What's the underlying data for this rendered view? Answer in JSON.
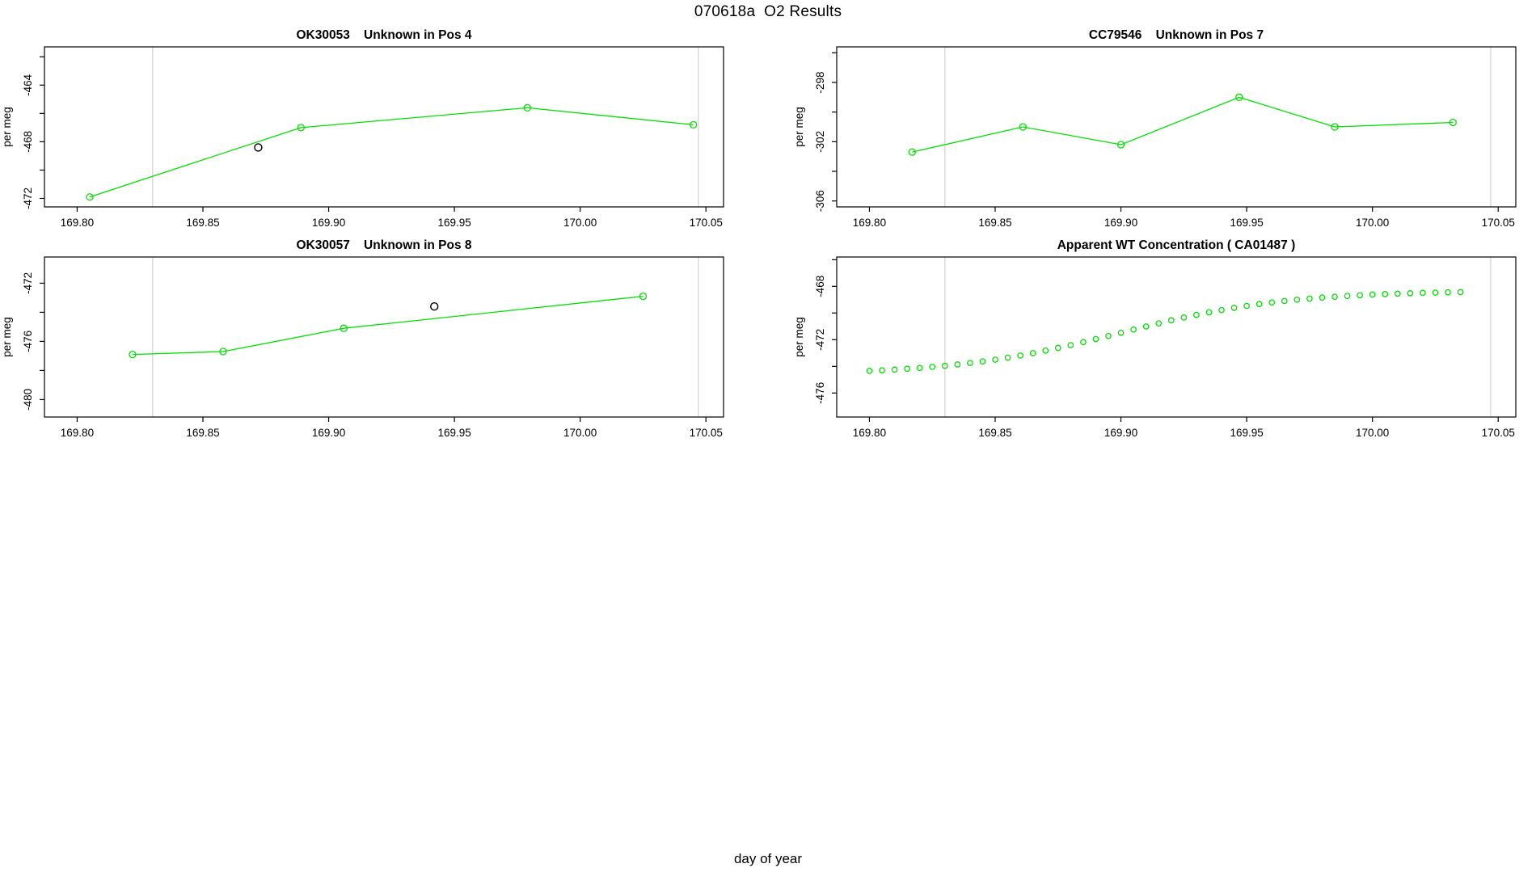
{
  "page_title": "070618a  O2 Results",
  "x_axis_label": "day of year",
  "colors": {
    "series_green": "#00e100",
    "outlier_black": "#000000",
    "ref_line_gray": "#d9d9d9",
    "axis_black": "#000000",
    "background": "#ffffff"
  },
  "chart_data": [
    {
      "type": "line",
      "title": "OK30053    Unknown in Pos 4",
      "ylabel": "per meg",
      "xlabel": "",
      "grid": false,
      "xlim": [
        169.787,
        170.057
      ],
      "ylim": [
        -472.6,
        -461.3
      ],
      "x_ticks": [
        169.8,
        169.85,
        169.9,
        169.95,
        170.0,
        170.05
      ],
      "x_tick_labels": [
        "169.80",
        "169.85",
        "169.90",
        "169.95",
        "170.00",
        "170.05"
      ],
      "y_ticks": [
        -472,
        -470,
        -468,
        -466,
        -464,
        -462
      ],
      "y_ticks_labeled": [
        -472,
        -468,
        -464
      ],
      "ref_lines_x": [
        169.83,
        170.047
      ],
      "series": [
        {
          "name": "sample-measurements",
          "style": "line+markers",
          "points": [
            [
              169.805,
              -471.9
            ],
            [
              169.889,
              -467.0
            ],
            [
              169.979,
              -465.6
            ],
            [
              170.045,
              -466.8
            ]
          ]
        }
      ],
      "outlier_points": [
        [
          169.872,
          -468.4
        ]
      ]
    },
    {
      "type": "line",
      "title": "CC79546    Unknown in Pos 7",
      "ylabel": "per meg",
      "xlabel": "",
      "grid": false,
      "xlim": [
        169.787,
        170.057
      ],
      "ylim": [
        -306.4,
        -295.6
      ],
      "x_ticks": [
        169.8,
        169.85,
        169.9,
        169.95,
        170.0,
        170.05
      ],
      "x_tick_labels": [
        "169.80",
        "169.85",
        "169.90",
        "169.95",
        "170.00",
        "170.05"
      ],
      "y_ticks": [
        -306,
        -304,
        -302,
        -300,
        -298,
        -296
      ],
      "y_ticks_labeled": [
        -306,
        -302,
        -298
      ],
      "ref_lines_x": [
        169.83,
        170.047
      ],
      "series": [
        {
          "name": "sample-measurements",
          "style": "line+markers",
          "points": [
            [
              169.817,
              -302.7
            ],
            [
              169.861,
              -301.0
            ],
            [
              169.9,
              -302.2
            ],
            [
              169.947,
              -299.0
            ],
            [
              169.985,
              -301.0
            ],
            [
              170.032,
              -300.7
            ]
          ]
        }
      ],
      "outlier_points": []
    },
    {
      "type": "line",
      "title": "OK30057    Unknown in Pos 8",
      "ylabel": "per meg",
      "xlabel": "",
      "grid": false,
      "xlim": [
        169.787,
        170.057
      ],
      "ylim": [
        -481.2,
        -470.2
      ],
      "x_ticks": [
        169.8,
        169.85,
        169.9,
        169.95,
        170.0,
        170.05
      ],
      "x_tick_labels": [
        "169.80",
        "169.85",
        "169.90",
        "169.95",
        "170.00",
        "170.05"
      ],
      "y_ticks": [
        -480,
        -478,
        -476,
        -474,
        -472
      ],
      "y_ticks_labeled": [
        -480,
        -476,
        -472
      ],
      "ref_lines_x": [
        169.83,
        170.047
      ],
      "series": [
        {
          "name": "sample-measurements",
          "style": "line+markers",
          "points": [
            [
              169.822,
              -476.9
            ],
            [
              169.858,
              -476.7
            ],
            [
              169.906,
              -475.1
            ],
            [
              170.025,
              -472.9
            ]
          ]
        }
      ],
      "outlier_points": [
        [
          169.942,
          -473.6
        ]
      ]
    },
    {
      "type": "scatter",
      "title": "Apparent WT Concentration ( CA01487 )",
      "ylabel": "per meg",
      "xlabel": "",
      "grid": false,
      "xlim": [
        169.787,
        170.057
      ],
      "ylim": [
        -477.8,
        -465.8
      ],
      "x_ticks": [
        169.8,
        169.85,
        169.9,
        169.95,
        170.0,
        170.05
      ],
      "x_tick_labels": [
        "169.80",
        "169.85",
        "169.90",
        "169.95",
        "170.00",
        "170.05"
      ],
      "y_ticks": [
        -476,
        -474,
        -472,
        -470,
        -468,
        -466
      ],
      "y_ticks_labeled": [
        -476,
        -472,
        -468
      ],
      "ref_lines_x": [
        169.83,
        170.047
      ],
      "series": [
        {
          "name": "apparent-wt-concentration",
          "style": "markers",
          "points": [
            [
              169.8,
              -474.34
            ],
            [
              169.805,
              -474.3
            ],
            [
              169.81,
              -474.24
            ],
            [
              169.815,
              -474.18
            ],
            [
              169.82,
              -474.12
            ],
            [
              169.825,
              -474.04
            ],
            [
              169.83,
              -473.96
            ],
            [
              169.835,
              -473.86
            ],
            [
              169.84,
              -473.75
            ],
            [
              169.845,
              -473.63
            ],
            [
              169.85,
              -473.5
            ],
            [
              169.855,
              -473.35
            ],
            [
              169.86,
              -473.19
            ],
            [
              169.865,
              -473.01
            ],
            [
              169.87,
              -472.82
            ],
            [
              169.875,
              -472.62
            ],
            [
              169.88,
              -472.41
            ],
            [
              169.885,
              -472.18
            ],
            [
              169.89,
              -471.95
            ],
            [
              169.895,
              -471.72
            ],
            [
              169.9,
              -471.48
            ],
            [
              169.905,
              -471.24
            ],
            [
              169.91,
              -471.01
            ],
            [
              169.915,
              -470.78
            ],
            [
              169.92,
              -470.55
            ],
            [
              169.925,
              -470.34
            ],
            [
              169.93,
              -470.14
            ],
            [
              169.935,
              -469.95
            ],
            [
              169.94,
              -469.78
            ],
            [
              169.945,
              -469.61
            ],
            [
              169.95,
              -469.47
            ],
            [
              169.955,
              -469.33
            ],
            [
              169.96,
              -469.21
            ],
            [
              169.965,
              -469.1
            ],
            [
              169.97,
              -469.0
            ],
            [
              169.975,
              -468.92
            ],
            [
              169.98,
              -468.84
            ],
            [
              169.985,
              -468.78
            ],
            [
              169.99,
              -468.72
            ],
            [
              169.995,
              -468.67
            ],
            [
              170.0,
              -468.62
            ],
            [
              170.005,
              -468.58
            ],
            [
              170.01,
              -468.55
            ],
            [
              170.015,
              -468.52
            ],
            [
              170.02,
              -468.49
            ],
            [
              170.025,
              -468.47
            ],
            [
              170.03,
              -468.45
            ],
            [
              170.035,
              -468.43
            ]
          ]
        }
      ],
      "outlier_points": []
    }
  ]
}
